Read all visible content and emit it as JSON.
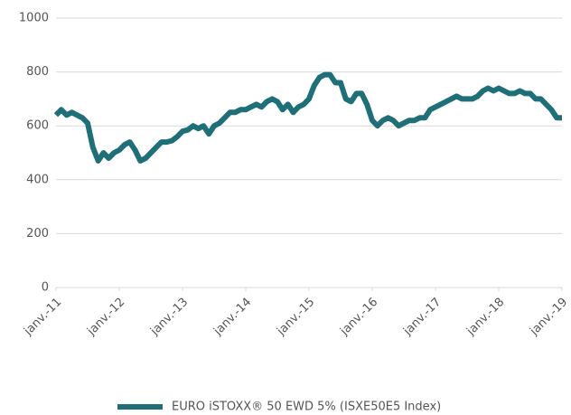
{
  "chart_data": {
    "type": "line",
    "x": [
      "2011-01",
      "2011-02",
      "2011-03",
      "2011-04",
      "2011-05",
      "2011-06",
      "2011-07",
      "2011-08",
      "2011-09",
      "2011-10",
      "2011-11",
      "2011-12",
      "2012-01",
      "2012-02",
      "2012-03",
      "2012-04",
      "2012-05",
      "2012-06",
      "2012-07",
      "2012-08",
      "2012-09",
      "2012-10",
      "2012-11",
      "2012-12",
      "2013-01",
      "2013-02",
      "2013-03",
      "2013-04",
      "2013-05",
      "2013-06",
      "2013-07",
      "2013-08",
      "2013-09",
      "2013-10",
      "2013-11",
      "2013-12",
      "2014-01",
      "2014-02",
      "2014-03",
      "2014-04",
      "2014-05",
      "2014-06",
      "2014-07",
      "2014-08",
      "2014-09",
      "2014-10",
      "2014-11",
      "2014-12",
      "2015-01",
      "2015-02",
      "2015-03",
      "2015-04",
      "2015-05",
      "2015-06",
      "2015-07",
      "2015-08",
      "2015-09",
      "2015-10",
      "2015-11",
      "2015-12",
      "2016-01",
      "2016-02",
      "2016-03",
      "2016-04",
      "2016-05",
      "2016-06",
      "2016-07",
      "2016-08",
      "2016-09",
      "2016-10",
      "2016-11",
      "2016-12",
      "2017-01",
      "2017-02",
      "2017-03",
      "2017-04",
      "2017-05",
      "2017-06",
      "2017-07",
      "2017-08",
      "2017-09",
      "2017-10",
      "2017-11",
      "2017-12",
      "2018-01",
      "2018-02",
      "2018-03",
      "2018-04",
      "2018-05",
      "2018-06",
      "2018-07",
      "2018-08",
      "2018-09",
      "2018-10",
      "2018-11",
      "2018-12",
      "2019-01"
    ],
    "series": [
      {
        "name": "EURO iSTOXX® 50 EWD 5% (ISXE50E5 Index)",
        "color": "#1f6f78",
        "values": [
          640,
          660,
          640,
          650,
          640,
          630,
          610,
          520,
          470,
          500,
          480,
          500,
          510,
          530,
          540,
          510,
          470,
          480,
          500,
          520,
          540,
          540,
          545,
          560,
          580,
          585,
          600,
          590,
          600,
          570,
          600,
          610,
          630,
          650,
          650,
          660,
          660,
          670,
          680,
          670,
          690,
          700,
          690,
          660,
          680,
          650,
          670,
          680,
          700,
          750,
          780,
          790,
          790,
          760,
          760,
          700,
          690,
          720,
          720,
          680,
          620,
          600,
          620,
          630,
          620,
          600,
          610,
          620,
          620,
          630,
          630,
          660,
          670,
          680,
          690,
          700,
          710,
          700,
          700,
          700,
          710,
          730,
          740,
          730,
          740,
          730,
          720,
          720,
          730,
          720,
          720,
          700,
          700,
          680,
          660,
          630,
          630
        ]
      }
    ],
    "xlim": [
      "2011-01",
      "2019-01"
    ],
    "xticks": [
      {
        "value": "2011-01",
        "label": "janv.-11"
      },
      {
        "value": "2012-01",
        "label": "janv.-12"
      },
      {
        "value": "2013-01",
        "label": "janv.-13"
      },
      {
        "value": "2014-01",
        "label": "janv.-14"
      },
      {
        "value": "2015-01",
        "label": "janv.-15"
      },
      {
        "value": "2016-01",
        "label": "janv.-16"
      },
      {
        "value": "2017-01",
        "label": "janv.-17"
      },
      {
        "value": "2018-01",
        "label": "janv.-18"
      },
      {
        "value": "2019-01",
        "label": "janv.-19"
      }
    ],
    "ylim": [
      0,
      1000
    ],
    "yticks": [
      0,
      200,
      400,
      600,
      800,
      1000
    ],
    "grid": true,
    "legend": "bottom"
  }
}
